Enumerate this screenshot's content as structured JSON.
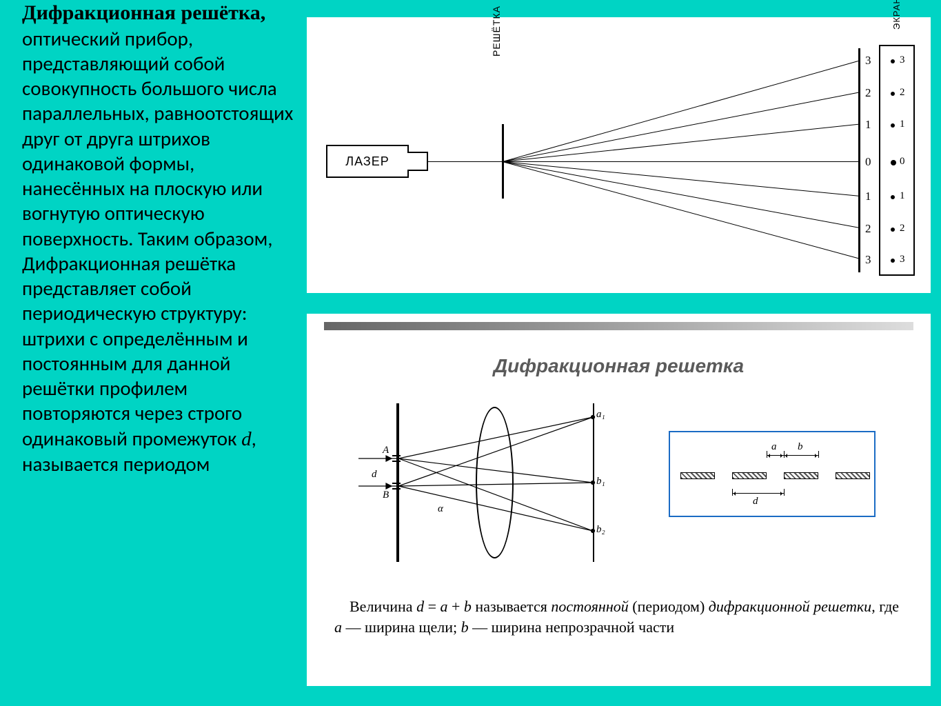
{
  "left": {
    "title": "Дифракционная решётка,",
    "body_pre": "оптический прибор, представляющий собой совокупность большого числа параллельных, равноотстоящих друг от друга штрихов одинаковой формы, нанесённых на плоскую или вогнутую оптическую поверхность. Таким образом, Дифракционная решётка представляет собой периодическую структуру: штрихи с определённым и постоянным для данной решётки профилем повторяются через строго одинаковый промежуток ",
    "d_sym": "d",
    "body_post": ", называется периодом"
  },
  "top_diagram": {
    "laser": "ЛАЗЕР",
    "grating": "РЕШЁТКА",
    "screen": "ЭКРАН",
    "orders_left": [
      "3",
      "2",
      "1",
      "0",
      "1",
      "2",
      "3"
    ],
    "orders_box": [
      "3",
      "2",
      "1",
      "0",
      "1",
      "2",
      "3"
    ]
  },
  "bottom": {
    "title": "Дифракционная решетка",
    "def_html": "Величина <span class='em'>d</span> = <span class='em'>a</span> + <span class='em'>b</span> называется <span class='em'>постоянной</span> (периодом) <span class='em'>дифракционной решетки</span>, где <span class='em'>a</span> — ширина щели; <span class='em'>b</span> — ширина непрозрачной части",
    "a": "a",
    "b": "b",
    "d": "d"
  },
  "colors": {
    "bg": "#00d4c4",
    "panel_bg": "#ffffff",
    "rule": "#000000",
    "blue_frame": "#1a6bc4"
  },
  "rays": [
    {
      "angle_deg": -15.8,
      "length": 536,
      "endy": 63
    },
    {
      "angle_deg": -11.0,
      "length": 526,
      "endy": 110
    },
    {
      "angle_deg": -6.0,
      "length": 519,
      "endy": 156
    },
    {
      "angle_deg": 0.0,
      "length": 516,
      "endy": 210
    },
    {
      "angle_deg": 5.5,
      "length": 519,
      "endy": 260
    },
    {
      "angle_deg": 10.5,
      "length": 525,
      "endy": 307
    },
    {
      "angle_deg": 15.2,
      "length": 535,
      "endy": 352
    }
  ]
}
